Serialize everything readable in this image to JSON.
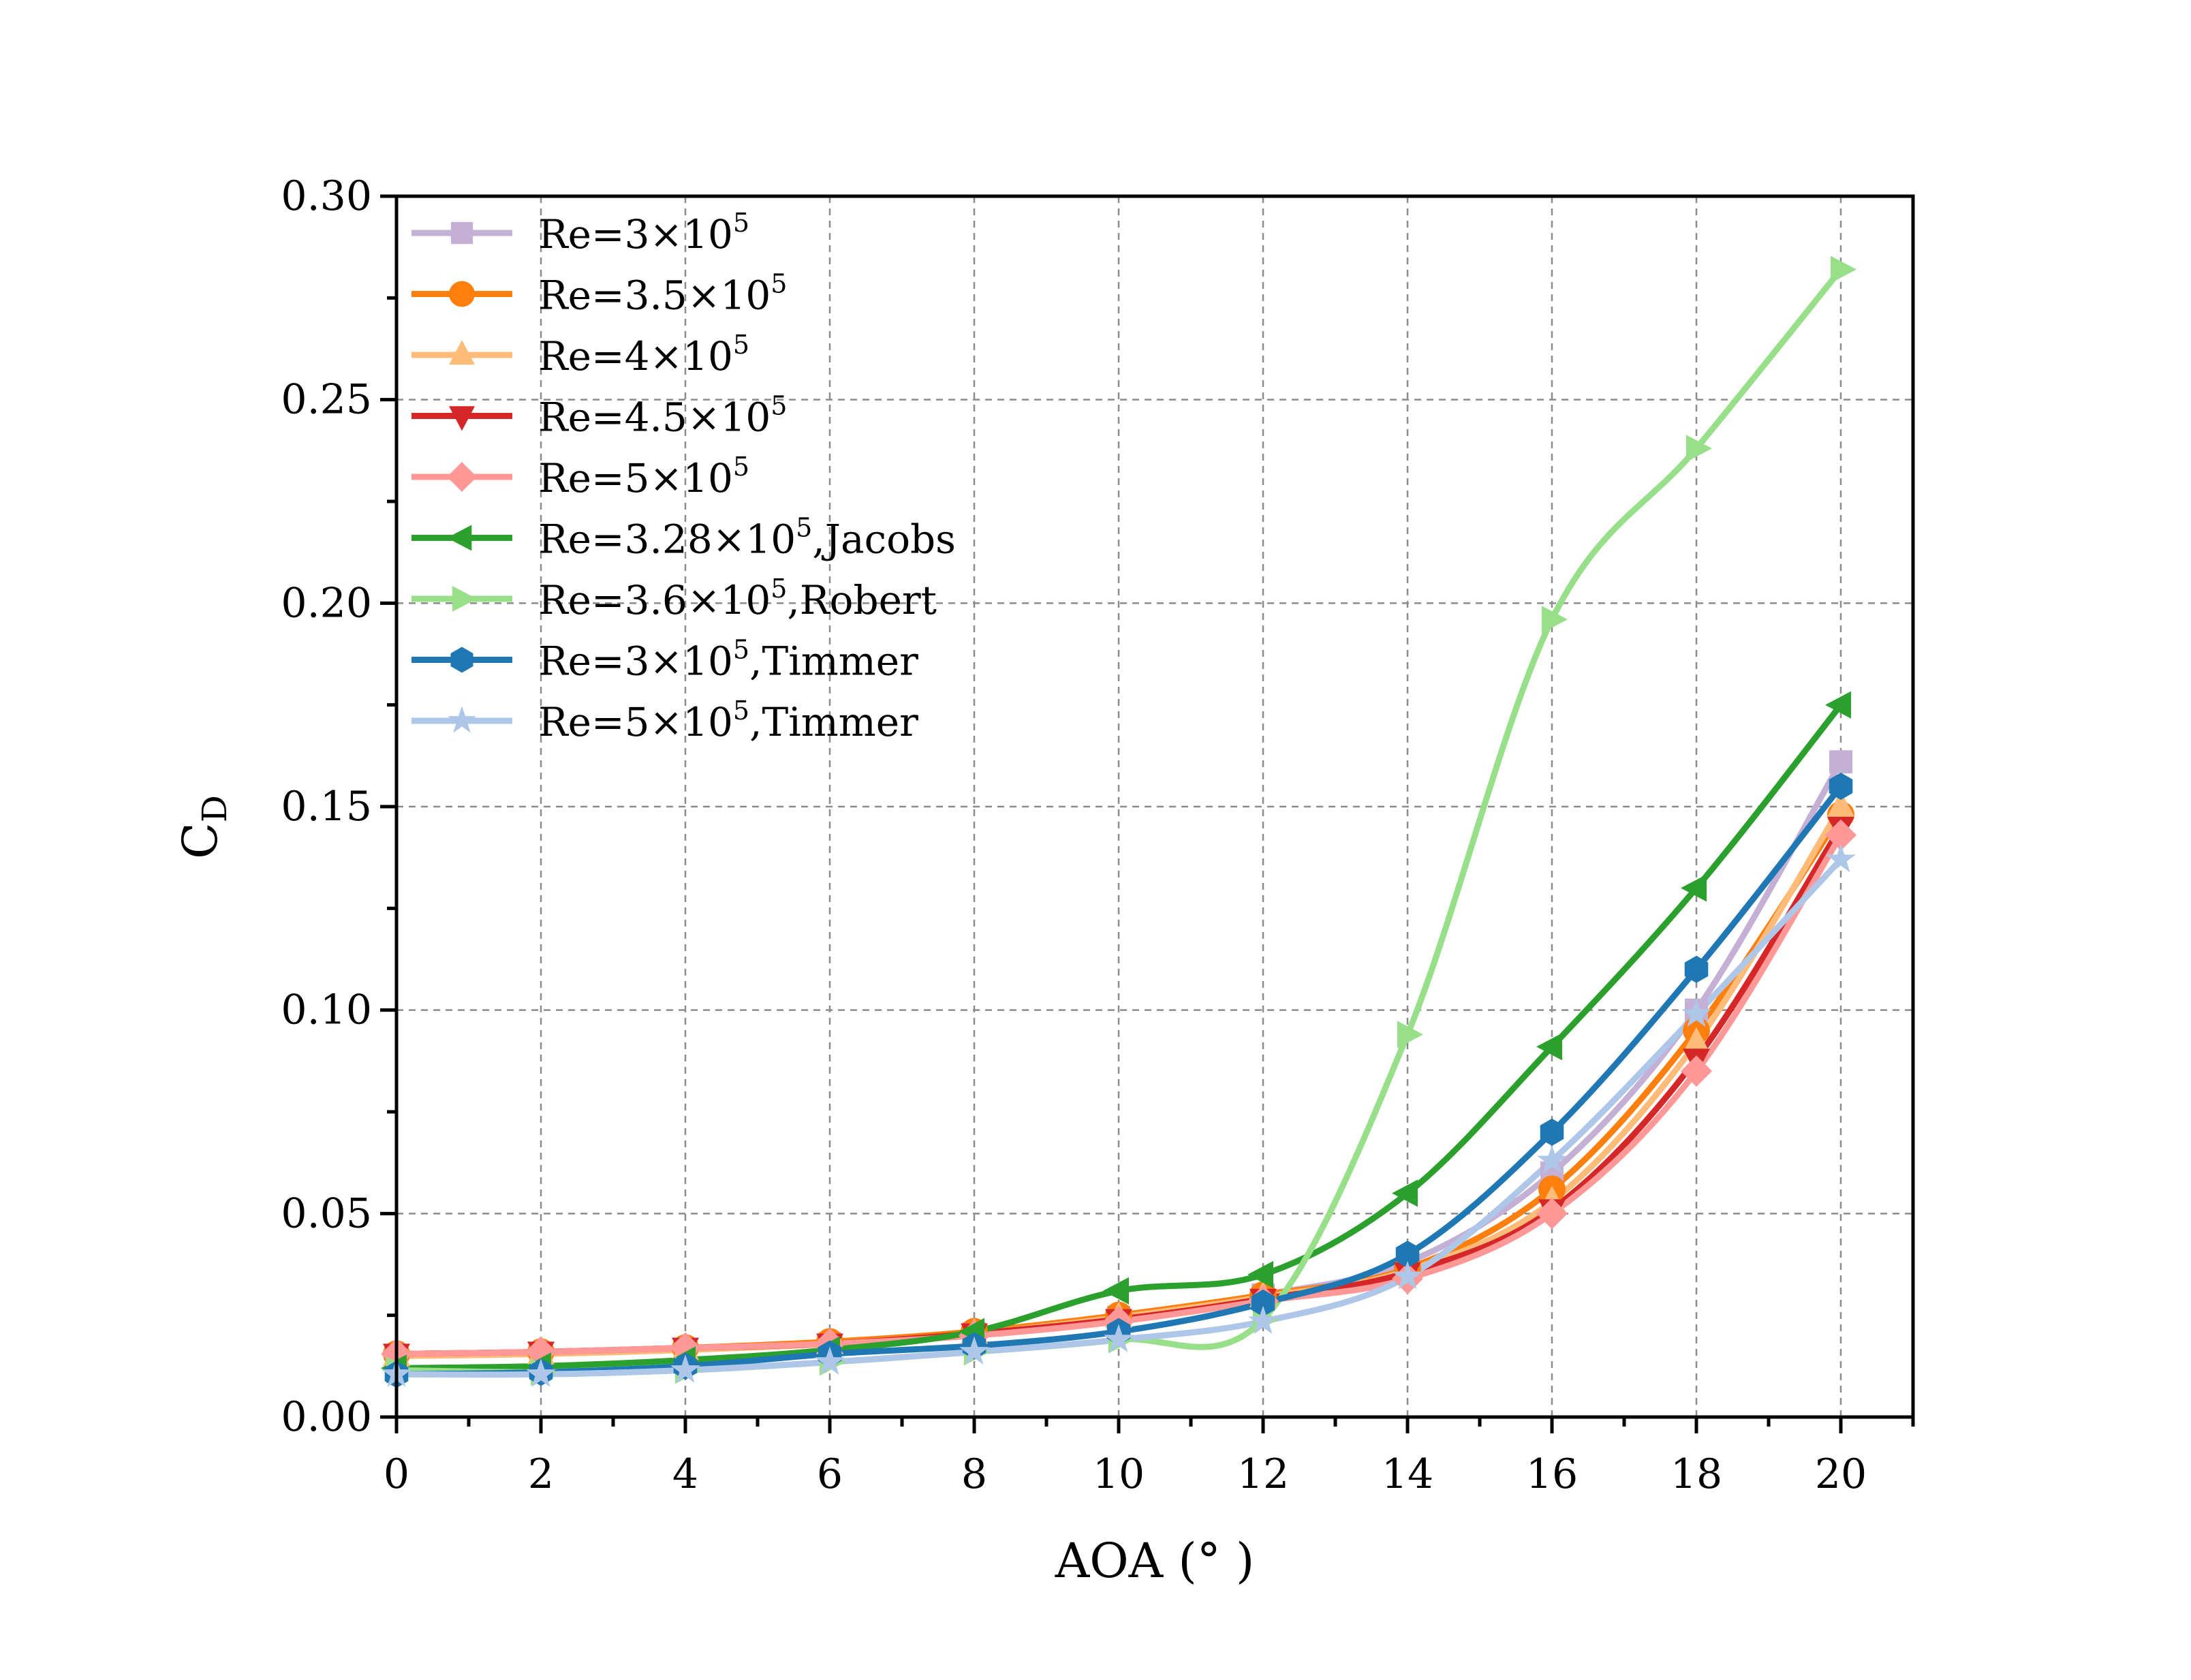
{
  "chart_data": {
    "type": "line",
    "title": "",
    "xlabel": "AOA (° )",
    "ylabel": {
      "base": "C",
      "subscript": "D"
    },
    "xlim": [
      0,
      21
    ],
    "ylim": [
      0,
      0.3
    ],
    "xticks": [
      0,
      2,
      4,
      6,
      8,
      10,
      12,
      14,
      16,
      18,
      20
    ],
    "xtick_labels": [
      "0",
      "2",
      "4",
      "6",
      "8",
      "10",
      "12",
      "14",
      "16",
      "18",
      "20"
    ],
    "yticks": [
      0,
      0.05,
      0.1,
      0.15,
      0.2,
      0.25,
      0.3
    ],
    "ytick_labels": [
      "0.00",
      "0.05",
      "0.10",
      "0.15",
      "0.20",
      "0.25",
      "0.30"
    ],
    "grid": true,
    "legend_position": "top-left",
    "x": [
      0,
      2,
      4,
      6,
      8,
      10,
      12,
      14,
      16,
      18,
      20
    ],
    "series": [
      {
        "name": "Re=3×10⁵",
        "legend_main": "Re=3×10",
        "legend_exp": "5",
        "legend_tail": "",
        "color": "#c5b0d5",
        "marker": "square",
        "values": [
          0.015,
          0.0155,
          0.0165,
          0.018,
          0.0205,
          0.0245,
          0.03,
          0.038,
          0.06,
          0.1,
          0.161
        ]
      },
      {
        "name": "Re=3.5×10⁵",
        "legend_main": "Re=3.5×10",
        "legend_exp": "5",
        "legend_tail": "",
        "color": "#ff7f0e",
        "marker": "circle",
        "values": [
          0.0155,
          0.016,
          0.017,
          0.0185,
          0.021,
          0.025,
          0.03,
          0.0365,
          0.056,
          0.095,
          0.148
        ]
      },
      {
        "name": "Re=4×10⁵",
        "legend_main": "Re=4×10",
        "legend_exp": "5",
        "legend_tail": "",
        "color": "#ffbb78",
        "marker": "triangle-up",
        "values": [
          0.015,
          0.0155,
          0.0165,
          0.018,
          0.0205,
          0.0245,
          0.0295,
          0.036,
          0.053,
          0.092,
          0.15
        ]
      },
      {
        "name": "Re=4.5×10⁵",
        "legend_main": "Re=4.5×10",
        "legend_exp": "5",
        "legend_tail": "",
        "color": "#d62728",
        "marker": "triangle-down",
        "values": [
          0.0155,
          0.016,
          0.017,
          0.018,
          0.0205,
          0.024,
          0.029,
          0.0355,
          0.051,
          0.088,
          0.145
        ]
      },
      {
        "name": "Re=5×10⁵",
        "legend_main": "Re=5×10",
        "legend_exp": "5",
        "legend_tail": "",
        "color": "#ff9896",
        "marker": "diamond",
        "values": [
          0.0155,
          0.016,
          0.017,
          0.018,
          0.02,
          0.0235,
          0.0285,
          0.034,
          0.05,
          0.085,
          0.143
        ]
      },
      {
        "name": "Re=3.28×10⁵, Jacobs",
        "legend_main": "Re=3.28×10",
        "legend_exp": "5",
        "legend_tail": ",Jacobs",
        "color": "#2ca02c",
        "marker": "triangle-left",
        "values": [
          0.012,
          0.0125,
          0.014,
          0.0165,
          0.021,
          0.031,
          0.035,
          0.055,
          0.091,
          0.13,
          0.175
        ]
      },
      {
        "name": "Re=3.6×10⁵, Robert",
        "legend_main": "Re=3.6×10",
        "legend_exp": "5",
        "legend_tail": ",Robert",
        "color": "#98df8a",
        "marker": "triangle-right",
        "values": [
          0.0115,
          0.011,
          0.0115,
          0.0135,
          0.016,
          0.019,
          0.024,
          0.094,
          0.196,
          0.238,
          0.282
        ]
      },
      {
        "name": "Re=3×10⁵, Timmer",
        "legend_main": "Re=3×10",
        "legend_exp": "5",
        "legend_tail": ",Timmer",
        "color": "#1f77b4",
        "marker": "hexagon",
        "values": [
          0.0105,
          0.011,
          0.0125,
          0.0155,
          0.0175,
          0.021,
          0.028,
          0.04,
          0.07,
          0.11,
          0.155
        ]
      },
      {
        "name": "Re=5×10⁵, Timmer",
        "legend_main": "Re=5×10",
        "legend_exp": "5",
        "legend_tail": ",Timmer",
        "color": "#aec7e8",
        "marker": "star",
        "values": [
          0.0105,
          0.0105,
          0.0115,
          0.0135,
          0.016,
          0.019,
          0.0235,
          0.0345,
          0.063,
          0.099,
          0.137
        ]
      }
    ]
  }
}
